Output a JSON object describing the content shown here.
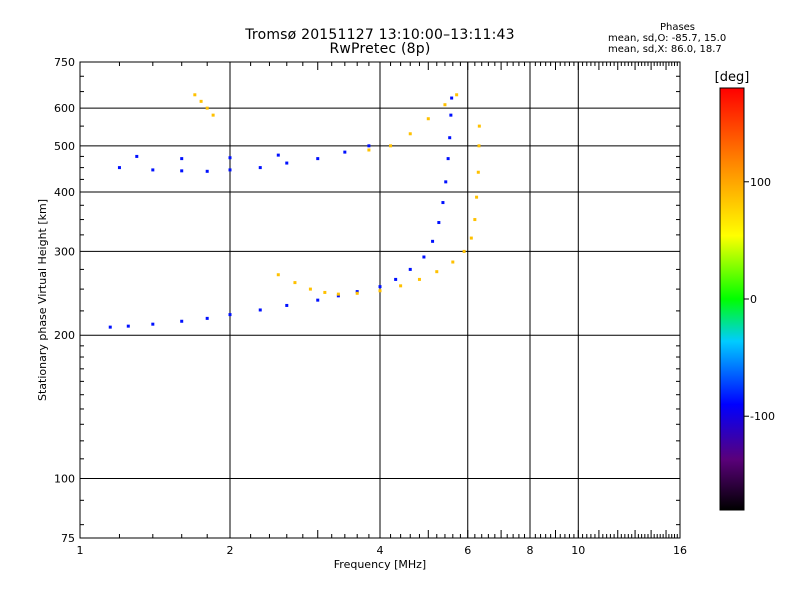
{
  "chart_data": {
    "type": "scatter",
    "title": "Tromsø 20151127 13:10:00–13:11:43",
    "subtitle": "RwPretec (8p)",
    "xlabel": "Frequency [MHz]",
    "ylabel": "Stationary phase Virtual Height [km]",
    "x_scale": "log",
    "y_scale": "log",
    "xlim": [
      1,
      16
    ],
    "ylim": [
      75,
      750
    ],
    "x_ticks": [
      1,
      2,
      4,
      6,
      8,
      10,
      16
    ],
    "y_ticks": [
      75,
      100,
      200,
      300,
      400,
      500,
      600,
      750
    ],
    "grid": true,
    "phase_stats": {
      "header": "Phases",
      "o_line": "mean, sd,O: -85.7, 15.0",
      "x_line": "mean, sd,X:  86.0, 18.7"
    },
    "colorbar": {
      "label": "[deg]",
      "range": [
        -180,
        180
      ],
      "ticks": [
        -100,
        0,
        100
      ],
      "colormap": "rainbow"
    },
    "series": [
      {
        "mode": "O",
        "mean_phase": -85.7,
        "points": [
          [
            1.15,
            208
          ],
          [
            1.25,
            209
          ],
          [
            1.4,
            211
          ],
          [
            1.6,
            214
          ],
          [
            1.8,
            217
          ],
          [
            2.0,
            221
          ],
          [
            2.3,
            226
          ],
          [
            2.6,
            231
          ],
          [
            3.0,
            237
          ],
          [
            3.3,
            242
          ],
          [
            3.6,
            247
          ],
          [
            4.0,
            253
          ],
          [
            4.3,
            262
          ],
          [
            4.6,
            275
          ],
          [
            4.9,
            292
          ],
          [
            5.1,
            315
          ],
          [
            5.25,
            345
          ],
          [
            5.35,
            380
          ],
          [
            5.42,
            420
          ],
          [
            5.48,
            470
          ],
          [
            5.52,
            520
          ],
          [
            5.55,
            580
          ],
          [
            5.57,
            630
          ],
          [
            1.2,
            450
          ],
          [
            1.4,
            445
          ],
          [
            1.6,
            443
          ],
          [
            1.8,
            442
          ],
          [
            2.0,
            445
          ],
          [
            2.3,
            450
          ],
          [
            2.6,
            460
          ],
          [
            3.0,
            470
          ],
          [
            3.4,
            485
          ],
          [
            3.8,
            500
          ],
          [
            1.3,
            475
          ],
          [
            1.6,
            470
          ],
          [
            2.0,
            472
          ],
          [
            2.5,
            478
          ]
        ]
      },
      {
        "mode": "X",
        "mean_phase": 86.0,
        "points": [
          [
            2.5,
            268
          ],
          [
            2.7,
            258
          ],
          [
            2.9,
            250
          ],
          [
            3.1,
            246
          ],
          [
            3.3,
            244
          ],
          [
            3.6,
            245
          ],
          [
            4.0,
            248
          ],
          [
            4.4,
            254
          ],
          [
            4.8,
            262
          ],
          [
            5.2,
            272
          ],
          [
            5.6,
            285
          ],
          [
            5.9,
            300
          ],
          [
            6.1,
            320
          ],
          [
            6.2,
            350
          ],
          [
            6.25,
            390
          ],
          [
            6.3,
            440
          ],
          [
            6.32,
            500
          ],
          [
            6.33,
            550
          ],
          [
            3.8,
            490
          ],
          [
            4.2,
            500
          ],
          [
            4.6,
            530
          ],
          [
            5.0,
            570
          ],
          [
            5.4,
            610
          ],
          [
            5.7,
            640
          ],
          [
            1.7,
            640
          ],
          [
            1.75,
            620
          ],
          [
            1.8,
            600
          ],
          [
            1.85,
            580
          ]
        ]
      }
    ]
  }
}
